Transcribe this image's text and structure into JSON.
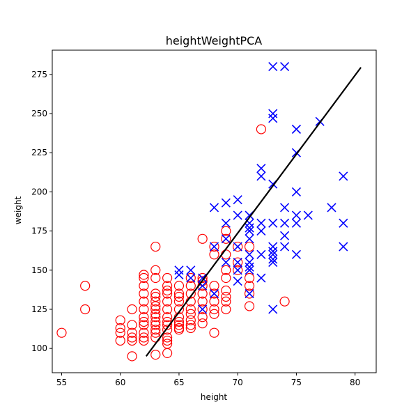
{
  "chart_data": {
    "type": "scatter",
    "title": "heightWeightPCA",
    "xlabel": "height",
    "ylabel": "weight",
    "xlim": [
      54.2,
      81.8
    ],
    "ylim": [
      84.5,
      290.5
    ],
    "xticks": [
      55,
      60,
      65,
      70,
      75,
      80
    ],
    "yticks": [
      100,
      125,
      150,
      175,
      200,
      225,
      250,
      275
    ],
    "grid": false,
    "series": [
      {
        "marker": "circle",
        "color": "#ff0000",
        "points": [
          [
            55,
            110
          ],
          [
            57,
            140
          ],
          [
            57,
            125
          ],
          [
            60,
            118
          ],
          [
            60,
            113
          ],
          [
            60,
            110
          ],
          [
            60,
            105
          ],
          [
            61,
            125
          ],
          [
            61,
            115
          ],
          [
            61,
            110
          ],
          [
            61,
            107
          ],
          [
            61,
            105
          ],
          [
            61,
            95
          ],
          [
            62,
            147
          ],
          [
            62,
            145
          ],
          [
            62,
            140
          ],
          [
            62,
            135
          ],
          [
            62,
            130
          ],
          [
            62,
            125
          ],
          [
            62,
            120
          ],
          [
            62,
            117
          ],
          [
            62,
            115
          ],
          [
            62,
            110
          ],
          [
            62,
            107
          ],
          [
            62,
            105
          ],
          [
            63,
            165
          ],
          [
            63,
            150
          ],
          [
            63,
            145
          ],
          [
            63,
            135
          ],
          [
            63,
            133
          ],
          [
            63,
            130
          ],
          [
            63,
            127
          ],
          [
            63,
            125
          ],
          [
            63,
            122
          ],
          [
            63,
            120
          ],
          [
            63,
            117
          ],
          [
            63,
            115
          ],
          [
            63,
            112
          ],
          [
            63,
            110
          ],
          [
            63,
            107
          ],
          [
            63,
            96
          ],
          [
            64,
            145
          ],
          [
            64,
            140
          ],
          [
            64,
            137
          ],
          [
            64,
            135
          ],
          [
            64,
            130
          ],
          [
            64,
            125
          ],
          [
            64,
            120
          ],
          [
            64,
            117
          ],
          [
            64,
            115
          ],
          [
            64,
            112
          ],
          [
            64,
            107
          ],
          [
            64,
            105
          ],
          [
            64,
            103
          ],
          [
            64,
            97
          ],
          [
            65,
            140
          ],
          [
            65,
            135
          ],
          [
            65,
            133
          ],
          [
            65,
            130
          ],
          [
            65,
            125
          ],
          [
            65,
            120
          ],
          [
            65,
            117
          ],
          [
            65,
            115
          ],
          [
            65,
            113
          ],
          [
            65,
            112
          ],
          [
            66,
            145
          ],
          [
            66,
            140
          ],
          [
            66,
            135
          ],
          [
            66,
            130
          ],
          [
            66,
            125
          ],
          [
            66,
            122
          ],
          [
            66,
            118
          ],
          [
            66,
            115
          ],
          [
            66,
            113
          ],
          [
            67,
            170
          ],
          [
            67,
            145
          ],
          [
            67,
            143
          ],
          [
            67,
            140
          ],
          [
            67,
            135
          ],
          [
            67,
            130
          ],
          [
            67,
            125
          ],
          [
            67,
            120
          ],
          [
            67,
            116
          ],
          [
            68,
            165
          ],
          [
            68,
            160
          ],
          [
            68,
            140
          ],
          [
            68,
            135
          ],
          [
            68,
            130
          ],
          [
            68,
            125
          ],
          [
            68,
            122
          ],
          [
            68,
            110
          ],
          [
            69,
            175
          ],
          [
            69,
            170
          ],
          [
            69,
            160
          ],
          [
            69,
            150
          ],
          [
            69,
            145
          ],
          [
            69,
            137
          ],
          [
            69,
            133
          ],
          [
            69,
            130
          ],
          [
            69,
            125
          ],
          [
            70,
            165
          ],
          [
            70,
            155
          ],
          [
            70,
            150
          ],
          [
            71,
            165
          ],
          [
            71,
            145
          ],
          [
            71,
            140
          ],
          [
            71,
            135
          ],
          [
            71,
            127
          ],
          [
            72,
            240
          ],
          [
            74,
            130
          ]
        ]
      },
      {
        "marker": "x",
        "color": "#0000ff",
        "points": [
          [
            65,
            150
          ],
          [
            65,
            147
          ],
          [
            66,
            150
          ],
          [
            66,
            145
          ],
          [
            67,
            145
          ],
          [
            67,
            140
          ],
          [
            67,
            125
          ],
          [
            68,
            190
          ],
          [
            68,
            165
          ],
          [
            68,
            135
          ],
          [
            69,
            193
          ],
          [
            69,
            180
          ],
          [
            69,
            170
          ],
          [
            69,
            155
          ],
          [
            70,
            195
          ],
          [
            70,
            185
          ],
          [
            70,
            165
          ],
          [
            70,
            155
          ],
          [
            70,
            150
          ],
          [
            70,
            143
          ],
          [
            71,
            185
          ],
          [
            71,
            180
          ],
          [
            71,
            177
          ],
          [
            71,
            175
          ],
          [
            71,
            170
          ],
          [
            71,
            160
          ],
          [
            71,
            155
          ],
          [
            71,
            152
          ],
          [
            71,
            150
          ],
          [
            71,
            135
          ],
          [
            72,
            215
          ],
          [
            72,
            210
          ],
          [
            72,
            180
          ],
          [
            72,
            175
          ],
          [
            72,
            160
          ],
          [
            72,
            145
          ],
          [
            73,
            280
          ],
          [
            73,
            250
          ],
          [
            73,
            247
          ],
          [
            73,
            205
          ],
          [
            73,
            180
          ],
          [
            73,
            165
          ],
          [
            73,
            162
          ],
          [
            73,
            160
          ],
          [
            73,
            157
          ],
          [
            73,
            155
          ],
          [
            73,
            125
          ],
          [
            74,
            280
          ],
          [
            74,
            190
          ],
          [
            74,
            180
          ],
          [
            74,
            172
          ],
          [
            74,
            165
          ],
          [
            75,
            240
          ],
          [
            75,
            225
          ],
          [
            75,
            200
          ],
          [
            75,
            185
          ],
          [
            75,
            180
          ],
          [
            75,
            160
          ],
          [
            76,
            185
          ],
          [
            77,
            245
          ],
          [
            78,
            190
          ],
          [
            79,
            210
          ],
          [
            79,
            180
          ],
          [
            79,
            165
          ]
        ]
      }
    ],
    "lines": [
      {
        "color": "#000000",
        "points": [
          [
            62.2,
            95
          ],
          [
            80.5,
            279.5
          ]
        ]
      }
    ]
  }
}
